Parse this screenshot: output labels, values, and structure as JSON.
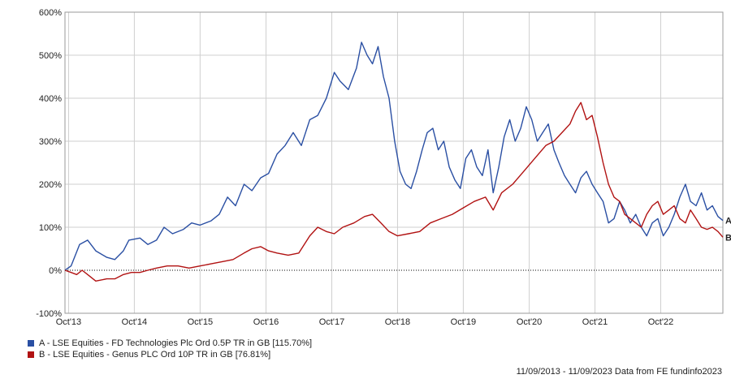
{
  "chart_data": {
    "type": "line",
    "title": "",
    "xlabel": "",
    "ylabel": "",
    "ylim": [
      -100,
      600
    ],
    "yticks": [
      "-100%",
      "0%",
      "100%",
      "200%",
      "300%",
      "400%",
      "500%",
      "600%"
    ],
    "xticks": [
      "Oct'13",
      "Oct'14",
      "Oct'15",
      "Oct'16",
      "Oct'17",
      "Oct'18",
      "Oct'19",
      "Oct'20",
      "Oct'21",
      "Oct'22"
    ],
    "xrange": [
      "2013-09-11",
      "2023-09-11"
    ],
    "grid": true,
    "legend_position": "bottom-left",
    "series": [
      {
        "name": "A - LSE Equities - FD Technologies Plc Ord 0.5P TR in GB [115.70%]",
        "end_label": "A",
        "color": "#2a4fa3",
        "points": [
          [
            "2013-09-11",
            0
          ],
          [
            "2013-10-15",
            10
          ],
          [
            "2013-12-01",
            60
          ],
          [
            "2014-01-15",
            70
          ],
          [
            "2014-03-01",
            45
          ],
          [
            "2014-05-01",
            30
          ],
          [
            "2014-06-15",
            25
          ],
          [
            "2014-08-01",
            45
          ],
          [
            "2014-09-01",
            70
          ],
          [
            "2014-11-01",
            75
          ],
          [
            "2014-12-15",
            60
          ],
          [
            "2015-02-01",
            70
          ],
          [
            "2015-03-15",
            100
          ],
          [
            "2015-05-01",
            85
          ],
          [
            "2015-07-01",
            95
          ],
          [
            "2015-08-15",
            110
          ],
          [
            "2015-10-01",
            105
          ],
          [
            "2015-12-01",
            115
          ],
          [
            "2016-01-15",
            130
          ],
          [
            "2016-03-01",
            170
          ],
          [
            "2016-04-15",
            150
          ],
          [
            "2016-06-01",
            200
          ],
          [
            "2016-07-15",
            185
          ],
          [
            "2016-09-01",
            215
          ],
          [
            "2016-10-15",
            225
          ],
          [
            "2016-12-01",
            270
          ],
          [
            "2017-01-15",
            290
          ],
          [
            "2017-03-01",
            320
          ],
          [
            "2017-04-15",
            290
          ],
          [
            "2017-06-01",
            350
          ],
          [
            "2017-07-15",
            360
          ],
          [
            "2017-09-01",
            400
          ],
          [
            "2017-10-15",
            460
          ],
          [
            "2017-11-15",
            440
          ],
          [
            "2018-01-01",
            420
          ],
          [
            "2018-02-15",
            470
          ],
          [
            "2018-03-15",
            530
          ],
          [
            "2018-04-15",
            500
          ],
          [
            "2018-05-15",
            480
          ],
          [
            "2018-06-15",
            520
          ],
          [
            "2018-07-15",
            450
          ],
          [
            "2018-08-15",
            400
          ],
          [
            "2018-09-15",
            300
          ],
          [
            "2018-10-15",
            230
          ],
          [
            "2018-11-15",
            200
          ],
          [
            "2018-12-15",
            190
          ],
          [
            "2019-01-15",
            230
          ],
          [
            "2019-02-15",
            280
          ],
          [
            "2019-03-15",
            320
          ],
          [
            "2019-04-15",
            330
          ],
          [
            "2019-05-15",
            280
          ],
          [
            "2019-06-15",
            300
          ],
          [
            "2019-07-15",
            240
          ],
          [
            "2019-08-15",
            210
          ],
          [
            "2019-09-15",
            190
          ],
          [
            "2019-10-15",
            260
          ],
          [
            "2019-11-15",
            280
          ],
          [
            "2019-12-15",
            240
          ],
          [
            "2020-01-15",
            220
          ],
          [
            "2020-02-15",
            280
          ],
          [
            "2020-03-15",
            180
          ],
          [
            "2020-04-15",
            240
          ],
          [
            "2020-05-15",
            310
          ],
          [
            "2020-06-15",
            350
          ],
          [
            "2020-07-15",
            300
          ],
          [
            "2020-08-15",
            330
          ],
          [
            "2020-09-15",
            380
          ],
          [
            "2020-10-15",
            350
          ],
          [
            "2020-11-15",
            300
          ],
          [
            "2020-12-15",
            320
          ],
          [
            "2021-01-15",
            340
          ],
          [
            "2021-02-15",
            280
          ],
          [
            "2021-03-15",
            250
          ],
          [
            "2021-04-15",
            220
          ],
          [
            "2021-05-15",
            200
          ],
          [
            "2021-06-15",
            180
          ],
          [
            "2021-07-15",
            215
          ],
          [
            "2021-08-15",
            230
          ],
          [
            "2021-09-15",
            200
          ],
          [
            "2021-10-15",
            180
          ],
          [
            "2021-11-15",
            160
          ],
          [
            "2021-12-15",
            110
          ],
          [
            "2022-01-15",
            120
          ],
          [
            "2022-02-15",
            160
          ],
          [
            "2022-03-15",
            140
          ],
          [
            "2022-04-15",
            110
          ],
          [
            "2022-05-15",
            130
          ],
          [
            "2022-06-15",
            100
          ],
          [
            "2022-07-15",
            80
          ],
          [
            "2022-08-15",
            110
          ],
          [
            "2022-09-15",
            120
          ],
          [
            "2022-10-15",
            80
          ],
          [
            "2022-11-15",
            100
          ],
          [
            "2022-12-15",
            130
          ],
          [
            "2023-01-15",
            170
          ],
          [
            "2023-02-15",
            200
          ],
          [
            "2023-03-15",
            160
          ],
          [
            "2023-04-15",
            150
          ],
          [
            "2023-05-15",
            180
          ],
          [
            "2023-06-15",
            140
          ],
          [
            "2023-07-15",
            150
          ],
          [
            "2023-08-15",
            125
          ],
          [
            "2023-09-11",
            115.7
          ]
        ]
      },
      {
        "name": "B - LSE Equities - Genus PLC Ord 10P TR in GB [76.81%]",
        "end_label": "B",
        "color": "#b11212",
        "points": [
          [
            "2013-09-11",
            0
          ],
          [
            "2013-10-15",
            -5
          ],
          [
            "2013-11-15",
            -10
          ],
          [
            "2013-12-15",
            0
          ],
          [
            "2014-01-15",
            -10
          ],
          [
            "2014-03-01",
            -25
          ],
          [
            "2014-05-01",
            -20
          ],
          [
            "2014-06-15",
            -20
          ],
          [
            "2014-08-01",
            -10
          ],
          [
            "2014-09-15",
            -5
          ],
          [
            "2014-11-01",
            -5
          ],
          [
            "2014-12-15",
            0
          ],
          [
            "2015-02-01",
            5
          ],
          [
            "2015-04-01",
            10
          ],
          [
            "2015-06-01",
            10
          ],
          [
            "2015-08-01",
            5
          ],
          [
            "2015-10-01",
            10
          ],
          [
            "2015-12-01",
            15
          ],
          [
            "2016-02-01",
            20
          ],
          [
            "2016-04-01",
            25
          ],
          [
            "2016-06-01",
            40
          ],
          [
            "2016-07-15",
            50
          ],
          [
            "2016-09-01",
            55
          ],
          [
            "2016-10-15",
            45
          ],
          [
            "2016-12-01",
            40
          ],
          [
            "2017-02-01",
            35
          ],
          [
            "2017-04-01",
            40
          ],
          [
            "2017-06-01",
            80
          ],
          [
            "2017-07-15",
            100
          ],
          [
            "2017-09-01",
            90
          ],
          [
            "2017-10-15",
            85
          ],
          [
            "2017-12-01",
            100
          ],
          [
            "2018-02-01",
            110
          ],
          [
            "2018-04-01",
            125
          ],
          [
            "2018-05-15",
            130
          ],
          [
            "2018-07-01",
            110
          ],
          [
            "2018-08-15",
            90
          ],
          [
            "2018-10-01",
            80
          ],
          [
            "2018-12-01",
            85
          ],
          [
            "2019-02-01",
            90
          ],
          [
            "2019-04-01",
            110
          ],
          [
            "2019-06-01",
            120
          ],
          [
            "2019-08-01",
            130
          ],
          [
            "2019-10-01",
            145
          ],
          [
            "2019-12-01",
            160
          ],
          [
            "2020-02-01",
            170
          ],
          [
            "2020-03-15",
            140
          ],
          [
            "2020-05-01",
            180
          ],
          [
            "2020-07-01",
            200
          ],
          [
            "2020-09-01",
            230
          ],
          [
            "2020-11-01",
            260
          ],
          [
            "2021-01-01",
            290
          ],
          [
            "2021-02-15",
            300
          ],
          [
            "2021-04-01",
            320
          ],
          [
            "2021-05-15",
            340
          ],
          [
            "2021-06-15",
            370
          ],
          [
            "2021-07-15",
            390
          ],
          [
            "2021-08-15",
            350
          ],
          [
            "2021-09-15",
            360
          ],
          [
            "2021-10-15",
            310
          ],
          [
            "2021-11-15",
            250
          ],
          [
            "2021-12-15",
            200
          ],
          [
            "2022-01-15",
            170
          ],
          [
            "2022-02-15",
            160
          ],
          [
            "2022-03-15",
            130
          ],
          [
            "2022-04-15",
            120
          ],
          [
            "2022-05-15",
            110
          ],
          [
            "2022-06-15",
            100
          ],
          [
            "2022-07-15",
            130
          ],
          [
            "2022-08-15",
            150
          ],
          [
            "2022-09-15",
            160
          ],
          [
            "2022-10-15",
            130
          ],
          [
            "2022-11-15",
            140
          ],
          [
            "2022-12-15",
            150
          ],
          [
            "2023-01-15",
            120
          ],
          [
            "2023-02-15",
            110
          ],
          [
            "2023-03-15",
            140
          ],
          [
            "2023-04-15",
            120
          ],
          [
            "2023-05-15",
            100
          ],
          [
            "2023-06-15",
            95
          ],
          [
            "2023-07-15",
            100
          ],
          [
            "2023-08-15",
            90
          ],
          [
            "2023-09-11",
            76.81
          ]
        ]
      }
    ]
  },
  "footer": {
    "text": "11/09/2013 - 11/09/2023 Data from FE fundinfo2023"
  }
}
